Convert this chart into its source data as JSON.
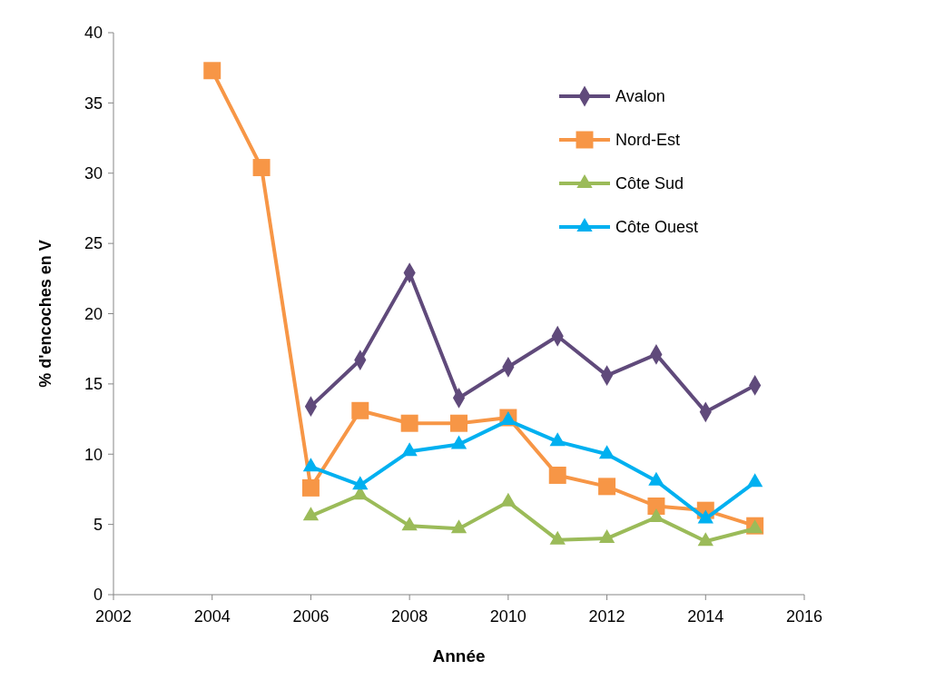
{
  "chart_data": {
    "type": "line",
    "xlabel": "Année",
    "ylabel": "% d'encoches en V",
    "xlim": [
      2002,
      2016
    ],
    "xticks": [
      2002,
      2004,
      2006,
      2008,
      2010,
      2012,
      2014,
      2016
    ],
    "ylim": [
      0,
      40
    ],
    "yticks": [
      0,
      5,
      10,
      15,
      20,
      25,
      30,
      35,
      40
    ],
    "grid": false,
    "legend": "top right",
    "line_style": "solid",
    "series": [
      {
        "name": "Avalon",
        "color": "#604a7b",
        "marker": "diamond",
        "x": [
          2006,
          2007,
          2008,
          2009,
          2010,
          2011,
          2012,
          2013,
          2014,
          2015
        ],
        "values": [
          13.4,
          16.7,
          22.9,
          14.0,
          16.2,
          18.4,
          15.6,
          17.1,
          13.0,
          14.9
        ]
      },
      {
        "name": "Nord-Est",
        "color": "#f79646",
        "marker": "square",
        "x": [
          2004,
          2005,
          2006,
          2007,
          2008,
          2009,
          2010,
          2011,
          2012,
          2013,
          2014,
          2015
        ],
        "values": [
          37.3,
          30.4,
          7.6,
          13.1,
          12.2,
          12.2,
          12.6,
          8.5,
          7.7,
          6.3,
          6.0,
          4.9
        ]
      },
      {
        "name": "Côte Sud",
        "color": "#9bbb59",
        "marker": "triangle",
        "x": [
          2006,
          2007,
          2008,
          2009,
          2010,
          2011,
          2012,
          2013,
          2014,
          2015
        ],
        "values": [
          5.6,
          7.1,
          4.9,
          4.7,
          6.6,
          3.9,
          4.0,
          5.5,
          3.8,
          4.7
        ]
      },
      {
        "name": "Côte Ouest",
        "color": "#00b0f0",
        "marker": "triangle",
        "x": [
          2006,
          2007,
          2008,
          2009,
          2010,
          2011,
          2012,
          2013,
          2014,
          2015
        ],
        "values": [
          9.1,
          7.8,
          10.2,
          10.7,
          12.4,
          10.9,
          10.0,
          8.1,
          5.4,
          8.0
        ]
      }
    ]
  }
}
